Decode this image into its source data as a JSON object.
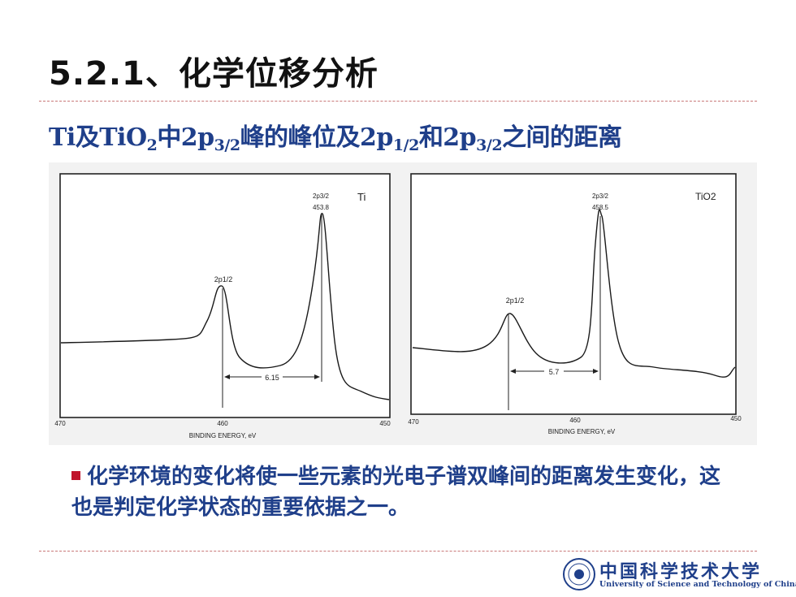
{
  "title": "5.2.1、化学位移分析",
  "subtitle": {
    "part1": "Ti及TiO",
    "sub1": "2",
    "part2": "中2p",
    "sub2": "3/2",
    "part3": "峰的峰位及2p",
    "sub3": "1/2",
    "part4": "和2p",
    "sub4": "3/2",
    "part5": "之间的距离"
  },
  "spectra": [
    {
      "sample_label": "Ti",
      "peak_label": "2p3/2",
      "peak_value": "453.8",
      "minor_peak_label": "2p1/2",
      "separation": "6.15",
      "axis_left": "470",
      "axis_mid": "460",
      "axis_right": "450",
      "xlabel": "BINDING ENERGY, eV"
    },
    {
      "sample_label": "TiO2",
      "peak_label": "2p3/2",
      "peak_value": "458.5",
      "minor_peak_label": "2p1/2",
      "separation": "5.7",
      "axis_left": "470",
      "axis_mid": "460",
      "axis_right": "450",
      "xlabel": "BINDING ENERGY, eV"
    }
  ],
  "body_text": "化学环境的变化将使一些元素的光电子谱双峰间的距离发生变化，这也是判定化学状态的重要依据之一。",
  "logo": {
    "cn": "中国科学技术大学",
    "en": "University of Science and Technology of China"
  },
  "colors": {
    "title": "#111111",
    "subtitle": "#1f3f8a",
    "bullet": "#c0142b",
    "rule": "#c87878"
  }
}
